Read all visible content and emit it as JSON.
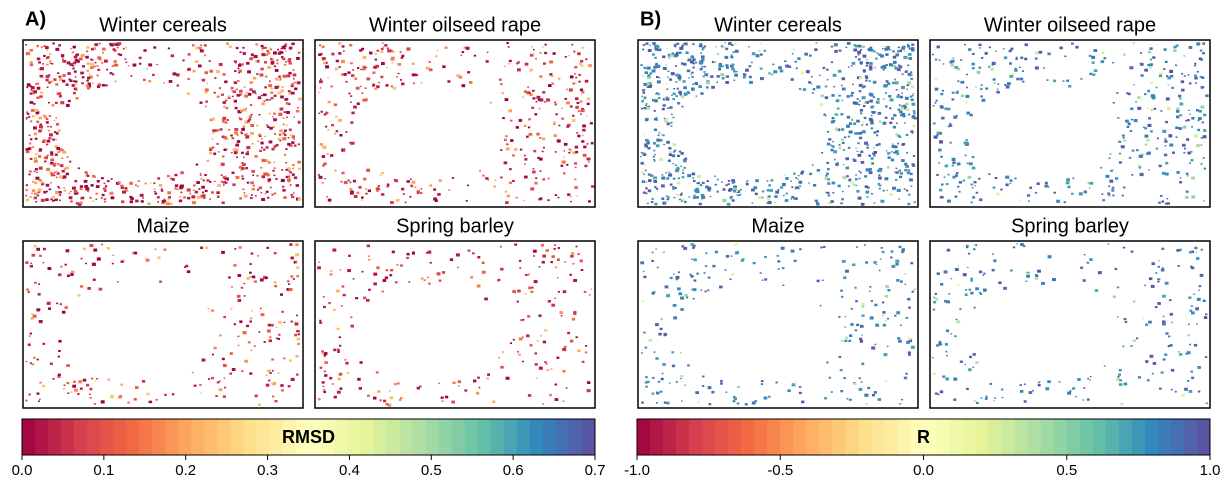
{
  "panels": [
    {
      "label": "A)",
      "maps": [
        "Winter cereals",
        "Winter oilseed rape",
        "Maize",
        "Spring barley"
      ],
      "colorbar": {
        "label": "RMSD",
        "lim": [
          0,
          0.7
        ],
        "ticks": [
          {
            "value": 0,
            "label": "0.0"
          },
          0.1,
          0.2,
          0.3,
          0.4,
          0.5,
          0.6,
          0.7
        ]
      }
    },
    {
      "label": "B)",
      "maps": [
        "Winter cereals",
        "Winter oilseed rape",
        "Maize",
        "Spring barley"
      ],
      "colorbar": {
        "label": "R",
        "lim": [
          -1,
          1
        ],
        "ticks": [
          {
            "value": -1,
            "label": "-1.0"
          },
          -0.5,
          {
            "value": 0,
            "label": "0.0"
          },
          0.5,
          {
            "value": 1,
            "label": "1.0"
          }
        ]
      }
    }
  ],
  "colormap": [
    "#9e0142",
    "#d53e4f",
    "#f46d43",
    "#fdae61",
    "#fee08b",
    "#ffffbf",
    "#e6f598",
    "#abdda4",
    "#66c2a5",
    "#3288bd",
    "#5e4fa2"
  ]
}
